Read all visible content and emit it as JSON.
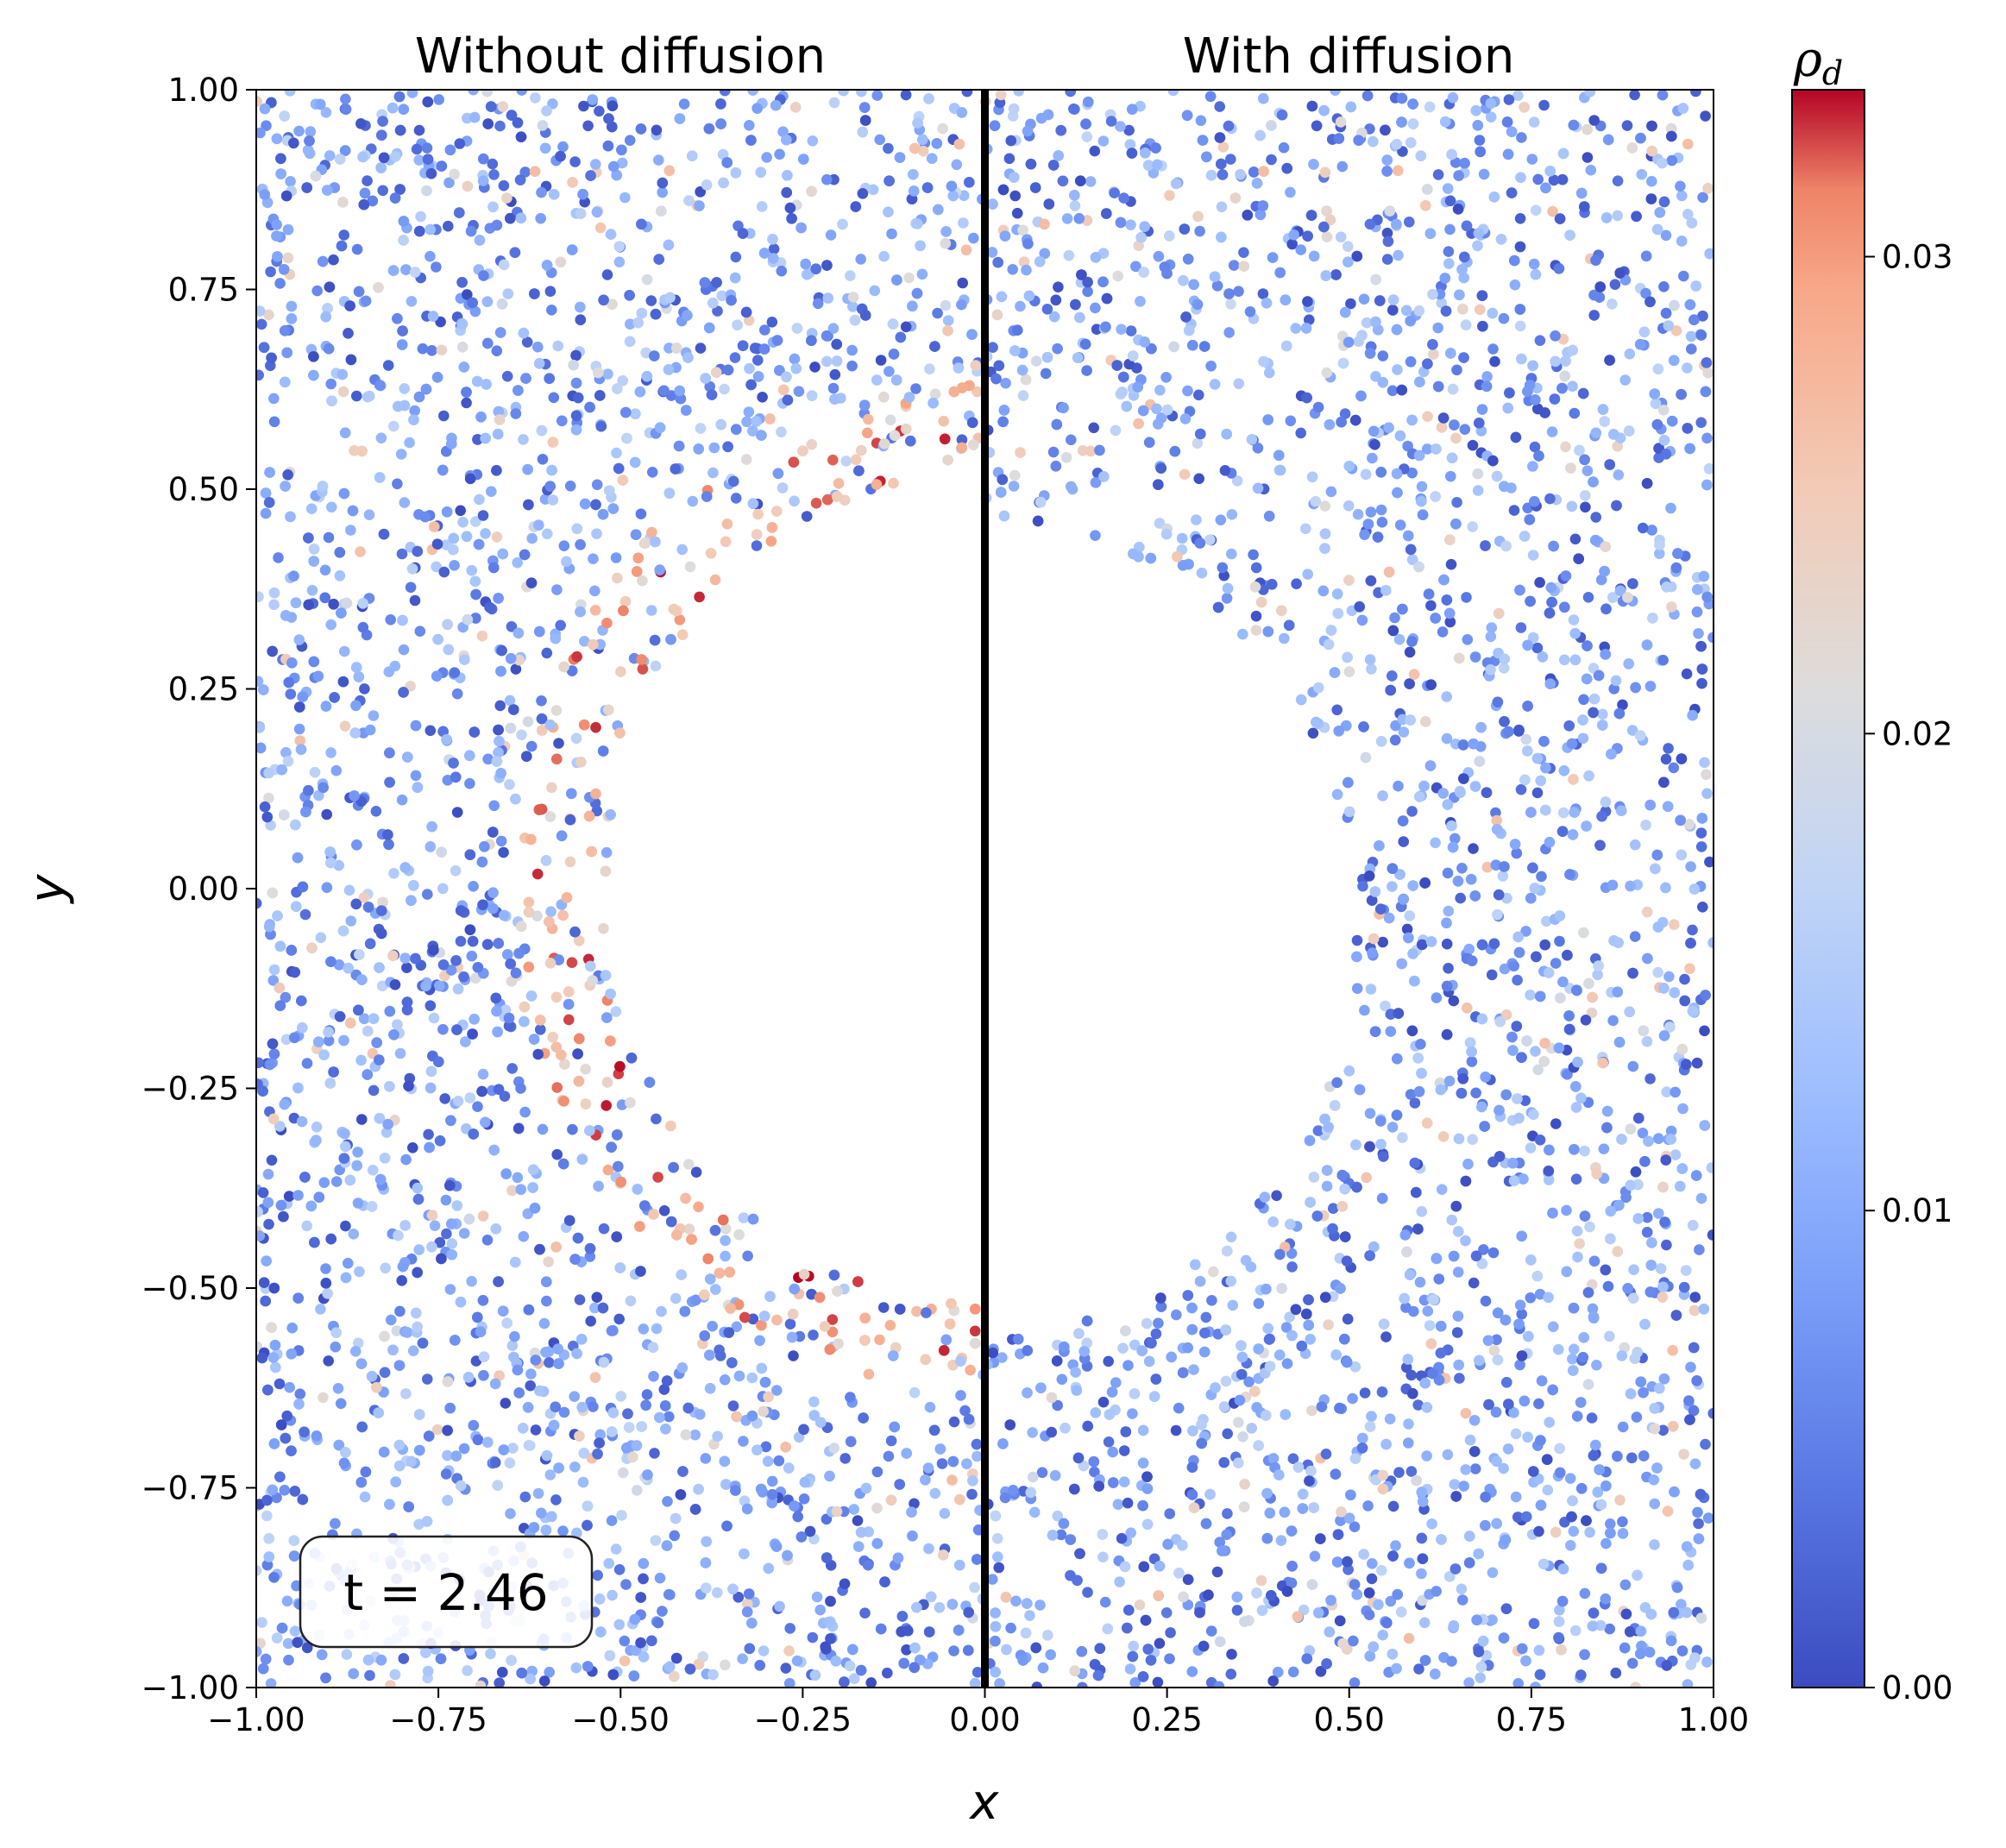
{
  "chart_data": {
    "type": "scatter",
    "panels": [
      {
        "title": "Without diffusion",
        "x_range": [
          -1.0,
          0.0
        ],
        "hole_center": [
          0.0,
          0.0
        ],
        "hole_radius": 0.52,
        "hot_ring": true
      },
      {
        "title": "With diffusion",
        "x_range": [
          0.0,
          1.0
        ],
        "hole_center": [
          0.0,
          -0.05
        ],
        "hole_radius": 0.51,
        "hot_ring": false
      }
    ],
    "xlabel": "x",
    "ylabel": "y",
    "xlim": [
      -1.0,
      1.0
    ],
    "ylim": [
      -1.0,
      1.0
    ],
    "x_ticks": [
      -1.0,
      -0.75,
      -0.5,
      -0.25,
      0.0,
      0.25,
      0.5,
      0.75,
      1.0
    ],
    "x_tick_labels": [
      "−1.00",
      "−0.75",
      "−0.50",
      "−0.25",
      "0.00",
      "0.25",
      "0.50",
      "0.75",
      "1.00"
    ],
    "y_ticks": [
      1.0,
      0.75,
      0.5,
      0.25,
      0.0,
      -0.25,
      -0.5,
      -0.75,
      -1.0
    ],
    "y_tick_labels": [
      "1.00",
      "0.75",
      "0.50",
      "0.25",
      "0.00",
      "−0.25",
      "−0.50",
      "−0.75",
      "−1.00"
    ],
    "colorbar": {
      "label": "ρd",
      "label_main": "ρ",
      "label_sub": "d",
      "min": 0.0,
      "max": 0.0335,
      "ticks": [
        0.0,
        0.01,
        0.02,
        0.03
      ],
      "tick_labels": [
        "0.00",
        "0.01",
        "0.02",
        "0.03"
      ],
      "colormap": "coolwarm"
    },
    "annotation": "t = 2.46",
    "divider_x": 0.0
  },
  "colors": {
    "cool": "#3b4cc0",
    "warm": "#b40426",
    "neutral": "#dddddd",
    "divider": "#000000"
  }
}
